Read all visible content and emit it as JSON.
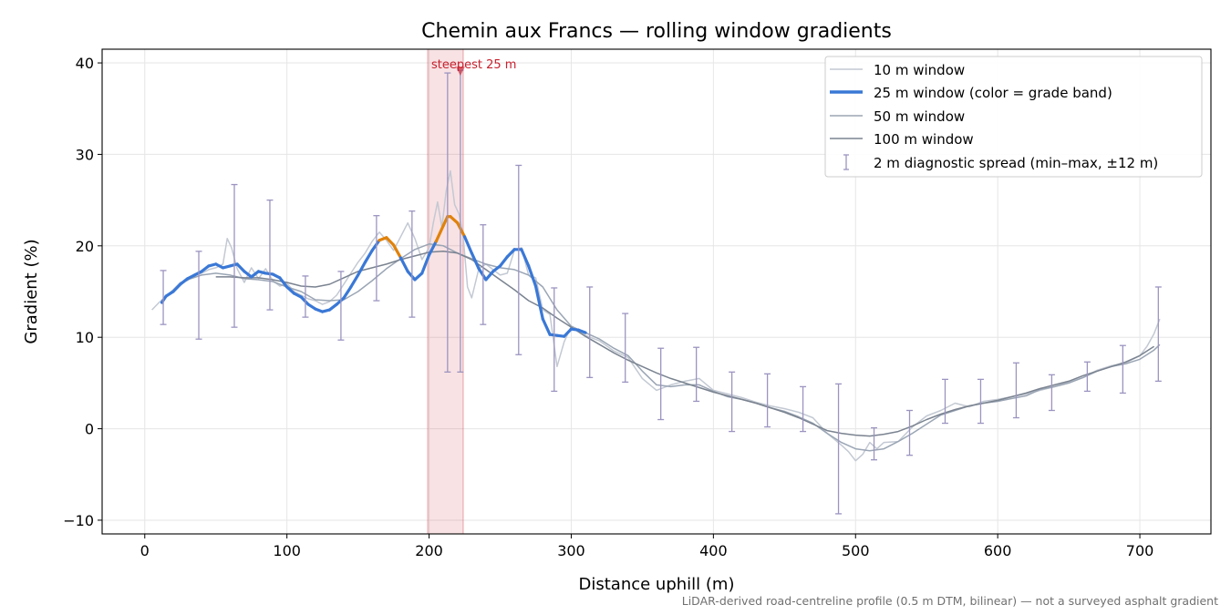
{
  "chart_data": {
    "type": "line",
    "title": "Chemin aux Francs — rolling window gradients",
    "xlabel": "Distance uphill (m)",
    "ylabel": "Gradient (%)",
    "xlim": [
      -30,
      750
    ],
    "ylim": [
      -11.5,
      41.5
    ],
    "x_ticks": [
      0,
      100,
      200,
      300,
      400,
      500,
      600,
      700
    ],
    "y_ticks": [
      -10,
      0,
      10,
      20,
      30,
      40
    ],
    "grid": true,
    "legend_position": "top-right",
    "footnote": "LiDAR-derived road-centreline profile (0.5 m DTM, bilinear) — not a surveyed asphalt gradient",
    "highlight": {
      "label": "steepest 25 m",
      "x_start": 199,
      "x_end": 224,
      "peak_x": 222,
      "peak_y": 39,
      "color": "#c8202d"
    },
    "grade_band_colors": {
      "normal": "#3a78d6",
      "steep": "#e0820a"
    },
    "series": [
      {
        "name": "10 m window",
        "color": "#c3c9d3",
        "x": [
          5,
          10,
          15,
          20,
          25,
          30,
          35,
          40,
          45,
          50,
          55,
          58,
          61,
          65,
          70,
          75,
          80,
          85,
          90,
          95,
          100,
          105,
          110,
          115,
          120,
          125,
          130,
          135,
          140,
          145,
          150,
          155,
          160,
          165,
          170,
          175,
          180,
          185,
          190,
          195,
          200,
          203,
          206,
          209,
          212,
          215,
          218,
          221,
          224,
          227,
          230,
          235,
          240,
          245,
          250,
          255,
          260,
          265,
          270,
          275,
          280,
          285,
          290,
          295,
          300,
          305,
          310,
          320,
          330,
          340,
          350,
          360,
          370,
          380,
          390,
          400,
          410,
          420,
          430,
          440,
          450,
          460,
          470,
          480,
          490,
          495,
          500,
          505,
          510,
          515,
          520,
          530,
          540,
          550,
          560,
          570,
          580,
          590,
          600,
          610,
          620,
          630,
          640,
          650,
          660,
          670,
          680,
          690,
          700,
          705,
          710,
          714
        ],
        "y": [
          13,
          13.8,
          14.5,
          15.2,
          16,
          16.2,
          16.8,
          17,
          17.4,
          17.6,
          18,
          20.8,
          19.8,
          17.5,
          16,
          17.6,
          16.4,
          17.5,
          16.2,
          15.6,
          15.9,
          15,
          14.6,
          14.2,
          14,
          13.6,
          13.9,
          14.6,
          15.8,
          17,
          18.2,
          19.2,
          20.5,
          21.5,
          20.6,
          19.5,
          21,
          22.5,
          20.8,
          18.5,
          19.8,
          22.5,
          24.8,
          22,
          26,
          28.2,
          24.5,
          23.5,
          21,
          15.5,
          14.3,
          17.5,
          18,
          17.4,
          16.8,
          17,
          19.5,
          19.8,
          16.8,
          16.5,
          13,
          12.5,
          6.8,
          9.5,
          11.2,
          10.8,
          10.2,
          9.6,
          8.5,
          7.8,
          5.5,
          4.2,
          4.8,
          5.2,
          5.5,
          4.2,
          3.8,
          3.4,
          2.9,
          2.5,
          2.2,
          1.8,
          1.2,
          -0.5,
          -1.8,
          -2.5,
          -3.5,
          -2.8,
          -1.5,
          -2.2,
          -1.5,
          -1.4,
          0.2,
          1.4,
          2,
          2.8,
          2.4,
          3,
          3.2,
          3.5,
          3.8,
          4.2,
          4.6,
          5.1,
          5.6,
          6.4,
          6.9,
          7.2,
          8,
          9,
          10.4,
          12
        ]
      },
      {
        "name": "25 m window (color = grade band)",
        "color": "#3a78d6",
        "x": [
          12,
          15,
          20,
          25,
          30,
          35,
          40,
          45,
          50,
          55,
          60,
          65,
          70,
          75,
          80,
          85,
          90,
          95,
          100,
          105,
          110,
          115,
          120,
          125,
          130,
          135,
          140,
          145,
          150,
          155,
          160,
          165,
          170,
          175,
          180,
          185,
          190,
          195,
          200,
          205,
          210,
          213,
          215,
          220,
          225,
          230,
          235,
          240,
          245,
          250,
          255,
          260,
          265,
          270,
          275,
          280,
          285,
          290,
          295,
          300,
          305,
          310
        ],
        "y": [
          13.8,
          14.5,
          15,
          15.8,
          16.4,
          16.8,
          17.2,
          17.8,
          18,
          17.6,
          17.8,
          18,
          17.2,
          16.6,
          17.2,
          17,
          16.9,
          16.5,
          15.5,
          14.8,
          14.4,
          13.6,
          13.1,
          12.8,
          13,
          13.6,
          14.3,
          15.5,
          16.8,
          18.2,
          19.5,
          20.6,
          20.9,
          20.1,
          18.7,
          17.2,
          16.3,
          17,
          19,
          20.5,
          22.2,
          23.2,
          23.2,
          22.5,
          21,
          19.2,
          17.5,
          16.3,
          17.2,
          17.8,
          18.8,
          19.6,
          19.6,
          17.8,
          15.6,
          12,
          10.3,
          10.2,
          10.1,
          10.9,
          10.8,
          10.5
        ],
        "steep_segments": [
          [
            163,
            178
          ],
          [
            203,
            225
          ]
        ]
      },
      {
        "name": "50 m window",
        "color": "#9aa5b4",
        "x": [
          30,
          40,
          50,
          60,
          70,
          80,
          90,
          100,
          110,
          120,
          130,
          140,
          150,
          160,
          170,
          180,
          190,
          200,
          210,
          220,
          230,
          240,
          250,
          260,
          270,
          280,
          290,
          300,
          310,
          320,
          330,
          340,
          350,
          360,
          370,
          380,
          390,
          400,
          410,
          420,
          430,
          440,
          450,
          460,
          470,
          480,
          490,
          500,
          510,
          520,
          530,
          540,
          550,
          560,
          570,
          580,
          590,
          600,
          610,
          620,
          630,
          640,
          650,
          660,
          670,
          680,
          690,
          700,
          710,
          714
        ],
        "y": [
          16.3,
          16.8,
          17,
          16.8,
          16.4,
          16.3,
          16.1,
          15.5,
          15,
          14.1,
          14,
          14.1,
          15,
          16.2,
          17.5,
          18.6,
          19.6,
          20.2,
          20,
          19.2,
          18.6,
          18,
          17.6,
          17.4,
          16.8,
          15.5,
          13,
          11.2,
          10.5,
          9.8,
          8.8,
          8,
          6.3,
          4.8,
          4.6,
          4.8,
          4.8,
          4.1,
          3.5,
          3.2,
          2.8,
          2.3,
          1.9,
          1.3,
          0.6,
          -0.5,
          -1.5,
          -2.2,
          -2.4,
          -2.2,
          -1.4,
          -0.5,
          0.5,
          1.5,
          2,
          2.5,
          2.8,
          3,
          3.3,
          3.6,
          4.3,
          4.6,
          5,
          5.6,
          6.3,
          6.8,
          7.1,
          7.6,
          8.6,
          9.2
        ]
      },
      {
        "name": "100 m window",
        "color": "#7a8390",
        "x": [
          50,
          60,
          70,
          80,
          90,
          100,
          110,
          120,
          130,
          140,
          150,
          160,
          170,
          180,
          190,
          200,
          210,
          220,
          230,
          240,
          250,
          260,
          270,
          280,
          290,
          300,
          310,
          320,
          330,
          340,
          350,
          360,
          370,
          380,
          390,
          400,
          410,
          420,
          430,
          440,
          450,
          460,
          470,
          480,
          490,
          500,
          510,
          520,
          530,
          540,
          550,
          560,
          570,
          580,
          590,
          600,
          610,
          620,
          630,
          640,
          650,
          660,
          670,
          680,
          690,
          700,
          710
        ],
        "y": [
          16.6,
          16.6,
          16.5,
          16.5,
          16.3,
          16,
          15.6,
          15.5,
          15.8,
          16.5,
          17.2,
          17.6,
          18,
          18.5,
          18.9,
          19.3,
          19.4,
          19.2,
          18.5,
          17.4,
          16.3,
          15.2,
          14,
          13.2,
          12.1,
          11.1,
          10.1,
          9.2,
          8.3,
          7.5,
          6.8,
          6.1,
          5.5,
          5,
          4.5,
          4,
          3.6,
          3.2,
          2.8,
          2.3,
          1.8,
          1.2,
          0.5,
          -0.2,
          -0.5,
          -0.7,
          -0.8,
          -0.6,
          -0.3,
          0.3,
          1,
          1.6,
          2.1,
          2.5,
          2.8,
          3.1,
          3.5,
          3.9,
          4.4,
          4.8,
          5.2,
          5.8,
          6.3,
          6.8,
          7.3,
          8,
          9
        ]
      }
    ],
    "error_bars": {
      "name": "2 m diagnostic spread (min–max, ±12 m)",
      "color": "#9c94c0",
      "x": [
        13,
        38,
        63,
        88,
        113,
        138,
        163,
        188,
        213,
        222,
        238,
        263,
        288,
        313,
        338,
        363,
        388,
        413,
        438,
        463,
        488,
        513,
        538,
        563,
        588,
        613,
        638,
        663,
        688,
        713
      ],
      "low": [
        11.4,
        9.8,
        11.1,
        13,
        12.2,
        9.7,
        14,
        12.2,
        6.2,
        6.2,
        11.4,
        8.1,
        4.1,
        5.6,
        5.1,
        1,
        3,
        -0.3,
        0.2,
        -0.3,
        -9.3,
        -3.4,
        -2.9,
        0.6,
        0.6,
        1.2,
        2,
        4.1,
        3.9,
        5.2
      ],
      "high": [
        17.3,
        19.4,
        26.7,
        25,
        16.7,
        17.2,
        23.3,
        23.8,
        38.9,
        39.2,
        22.3,
        28.8,
        15.4,
        15.5,
        12.6,
        8.8,
        8.9,
        6.2,
        6,
        4.6,
        4.9,
        0.1,
        2,
        5.4,
        5.4,
        7.2,
        5.9,
        7.3,
        9.1,
        15.5
      ]
    }
  }
}
